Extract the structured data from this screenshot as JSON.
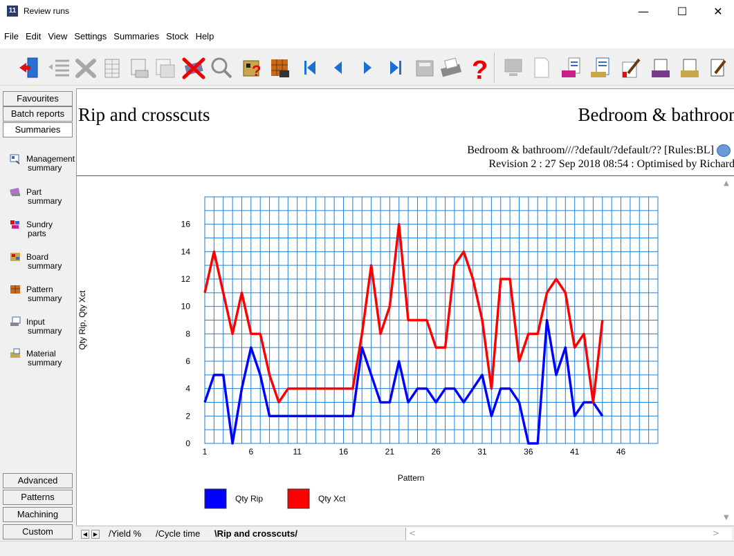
{
  "window": {
    "title": "Review runs",
    "app_icon": "11"
  },
  "menu": [
    "File",
    "Edit",
    "View",
    "Settings",
    "Summaries",
    "Stock",
    "Help"
  ],
  "toolbar": {
    "icons": [
      "exit-door-icon",
      "list-icon",
      "cancel-x-icon",
      "report-table-icon",
      "report-grid-icon",
      "delete-boards-icon",
      "magnifier-icon",
      "pattern-question-icon",
      "pallet-icon",
      "first-icon",
      "previous-icon",
      "next-icon",
      "last-icon",
      "calculator-icon",
      "printer-icon",
      "help-question-icon",
      "monitor-icon",
      "blank-page-icon",
      "export-icon",
      "document-icon",
      "edit-chart-icon"
    ]
  },
  "leftnav": {
    "top_tabs": [
      "Favourites",
      "Batch reports",
      "Summaries"
    ],
    "items": [
      {
        "line1": "Management",
        "line2": "summary",
        "icon": "management-summary-icon"
      },
      {
        "line1": "Part",
        "line2": "summary",
        "icon": "part-summary-icon"
      },
      {
        "line1": "Sundry",
        "line2": "parts",
        "icon": "sundry-parts-icon"
      },
      {
        "line1": "Board",
        "line2": "summary",
        "icon": "board-summary-icon"
      },
      {
        "line1": "Pattern",
        "line2": "summary",
        "icon": "pattern-summary-icon"
      },
      {
        "line1": "Input",
        "line2": "summary",
        "icon": "input-summary-icon"
      },
      {
        "line1": "Material",
        "line2": "summary",
        "icon": "material-summary-icon"
      }
    ],
    "bottom_tabs": [
      "Advanced",
      "Patterns",
      "Machining",
      "Custom"
    ]
  },
  "report": {
    "title": "Rip and crosscuts",
    "job_name": "Bedroom & bathroom",
    "info_line1": "Bedroom & bathroom///?default/?default/?? [Rules:BL]",
    "info_line2": "Revision 2 : 27 Sep 2018 08:54 : Optimised by Richard"
  },
  "chart_data": {
    "type": "line",
    "xlabel": "Pattern",
    "ylabel": "Qty Rip, Qty Xct",
    "xlim": [
      1,
      50
    ],
    "ylim": [
      0,
      18
    ],
    "x_ticks": [
      1,
      6,
      11,
      16,
      21,
      26,
      31,
      36,
      41,
      46
    ],
    "y_ticks": [
      0,
      2,
      4,
      6,
      8,
      10,
      12,
      14,
      16
    ],
    "grid": true,
    "legend_position": "bottom-left",
    "x": [
      1,
      2,
      3,
      4,
      5,
      6,
      7,
      8,
      9,
      10,
      11,
      12,
      13,
      14,
      15,
      16,
      17,
      18,
      19,
      20,
      21,
      22,
      23,
      24,
      25,
      26,
      27,
      28,
      29,
      30,
      31,
      32,
      33,
      34,
      35,
      36,
      37,
      38,
      39,
      40,
      41,
      42,
      43,
      44
    ],
    "series": [
      {
        "name": "Qty Rip",
        "color": "#0000ff",
        "values": [
          3,
          5,
          5,
          0,
          4,
          7,
          5,
          2,
          2,
          2,
          2,
          2,
          2,
          2,
          2,
          2,
          2,
          7,
          5,
          3,
          3,
          6,
          3,
          4,
          4,
          3,
          4,
          4,
          3,
          4,
          5,
          2,
          4,
          4,
          3,
          0,
          0,
          9,
          5,
          7,
          2,
          3,
          3,
          2
        ]
      },
      {
        "name": "Qty Xct",
        "color": "#ff0000",
        "values": [
          11,
          14,
          11,
          8,
          11,
          8,
          8,
          5,
          3,
          4,
          4,
          4,
          4,
          4,
          4,
          4,
          4,
          8,
          13,
          8,
          10,
          16,
          9,
          9,
          9,
          7,
          7,
          13,
          14,
          12,
          9,
          4,
          12,
          12,
          6,
          8,
          8,
          11,
          12,
          11,
          7,
          8,
          3,
          9
        ]
      }
    ]
  },
  "bottom_tabs": {
    "sheets": [
      "Yield %",
      "Cycle time",
      "Rip and crosscuts"
    ],
    "active": "Rip and crosscuts"
  }
}
